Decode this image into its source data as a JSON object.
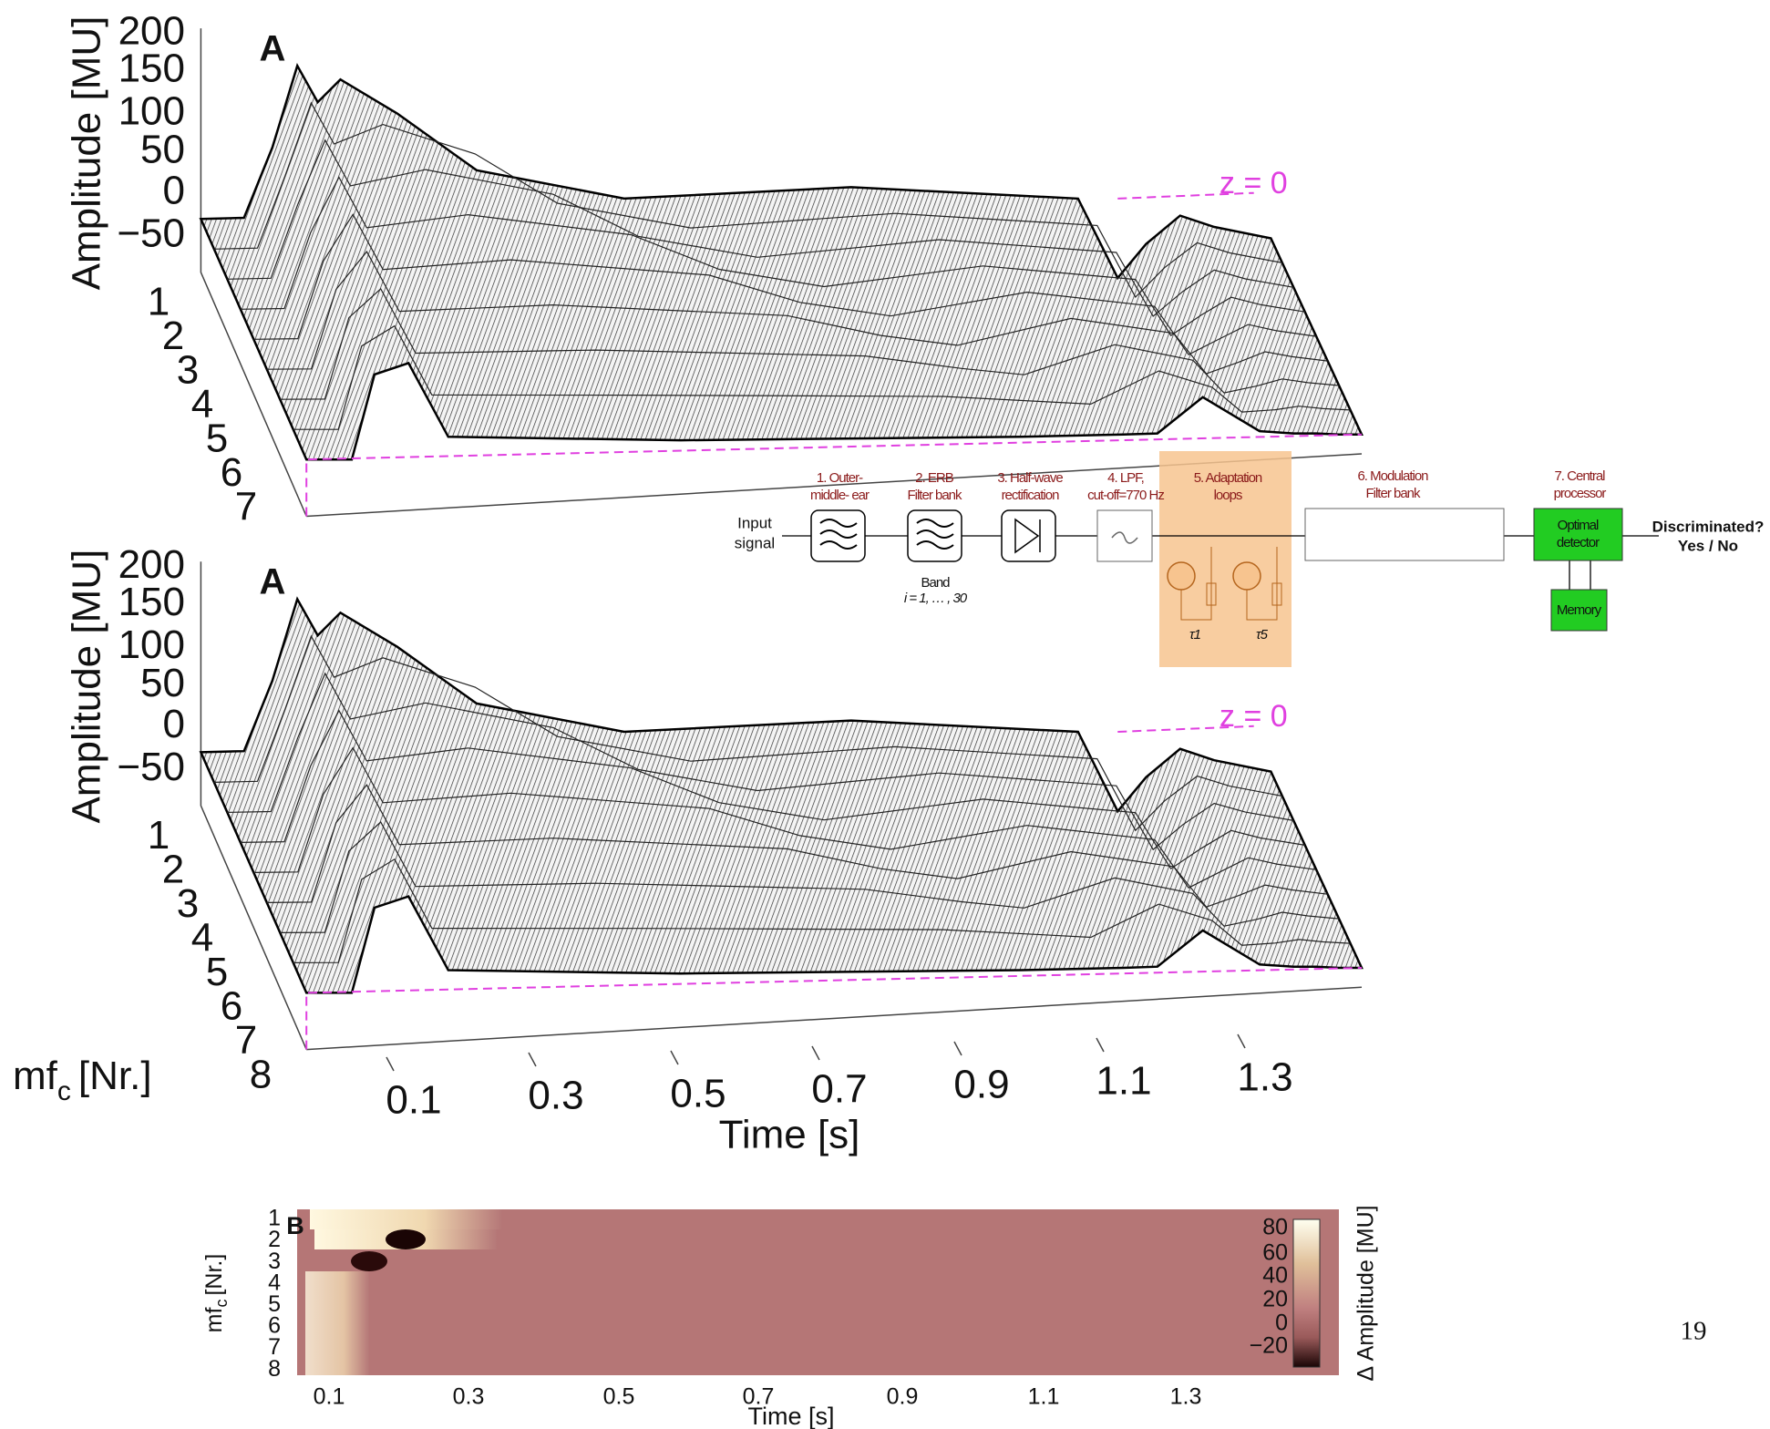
{
  "panel_a_top": {
    "panel_label": "A",
    "z_label": "Amplitude [MU]",
    "z_ticks": [
      "200",
      "150",
      "100",
      "50",
      "0",
      "−50"
    ],
    "depth_ticks": [
      "1",
      "2",
      "3",
      "4",
      "5",
      "6",
      "7"
    ],
    "annotation": "z = 0"
  },
  "panel_a_bottom": {
    "panel_label": "A",
    "z_label": "Amplitude [MU]",
    "z_ticks": [
      "200",
      "150",
      "100",
      "50",
      "0",
      "−50"
    ],
    "depth_ticks": [
      "1",
      "2",
      "3",
      "4",
      "5",
      "6",
      "7",
      "8"
    ],
    "annotation": "z = 0",
    "depth_label": {
      "main": "mf",
      "sub": "c",
      "unit": "[Nr.]"
    },
    "time_ticks": [
      "0.1",
      "0.3",
      "0.5",
      "0.7",
      "0.9",
      "1.1",
      "1.3"
    ],
    "time_label": "Time [s]"
  },
  "diagram": {
    "input": [
      "Input",
      "signal"
    ],
    "stages": [
      [
        "1. Outer-",
        "middle- ear"
      ],
      [
        "2. ERB",
        "Filter bank"
      ],
      [
        "3. Half-wave",
        "rectification"
      ],
      [
        "4. LPF,",
        "cut-off=770 Hz"
      ],
      [
        "5. Adaptation",
        "loops"
      ],
      [
        "6. Modulation",
        "Filter bank"
      ],
      [
        "7. Central",
        "processor"
      ]
    ],
    "band": [
      "Band",
      "i = 1, … , 30"
    ],
    "tau": [
      "τ1",
      "τ5"
    ],
    "detector": [
      "Optimal",
      "detector"
    ],
    "memory": "Memory",
    "output": [
      "Discriminated?",
      "Yes / No"
    ]
  },
  "panel_b": {
    "panel_label": "B",
    "y_ticks": [
      "1",
      "2",
      "3",
      "4",
      "5",
      "6",
      "7",
      "8"
    ],
    "y_label": {
      "main": "mf",
      "sub": "c",
      "unit": "[Nr.]"
    },
    "x_ticks": [
      "0.1",
      "0.3",
      "0.5",
      "0.7",
      "0.9",
      "1.1",
      "1.3"
    ],
    "x_label": "Time [s]",
    "colorbar_ticks": [
      "80",
      "60",
      "40",
      "20",
      "0",
      "−20"
    ],
    "colorbar_label": "Δ Amplitude [MU]"
  },
  "page_number": "19"
}
